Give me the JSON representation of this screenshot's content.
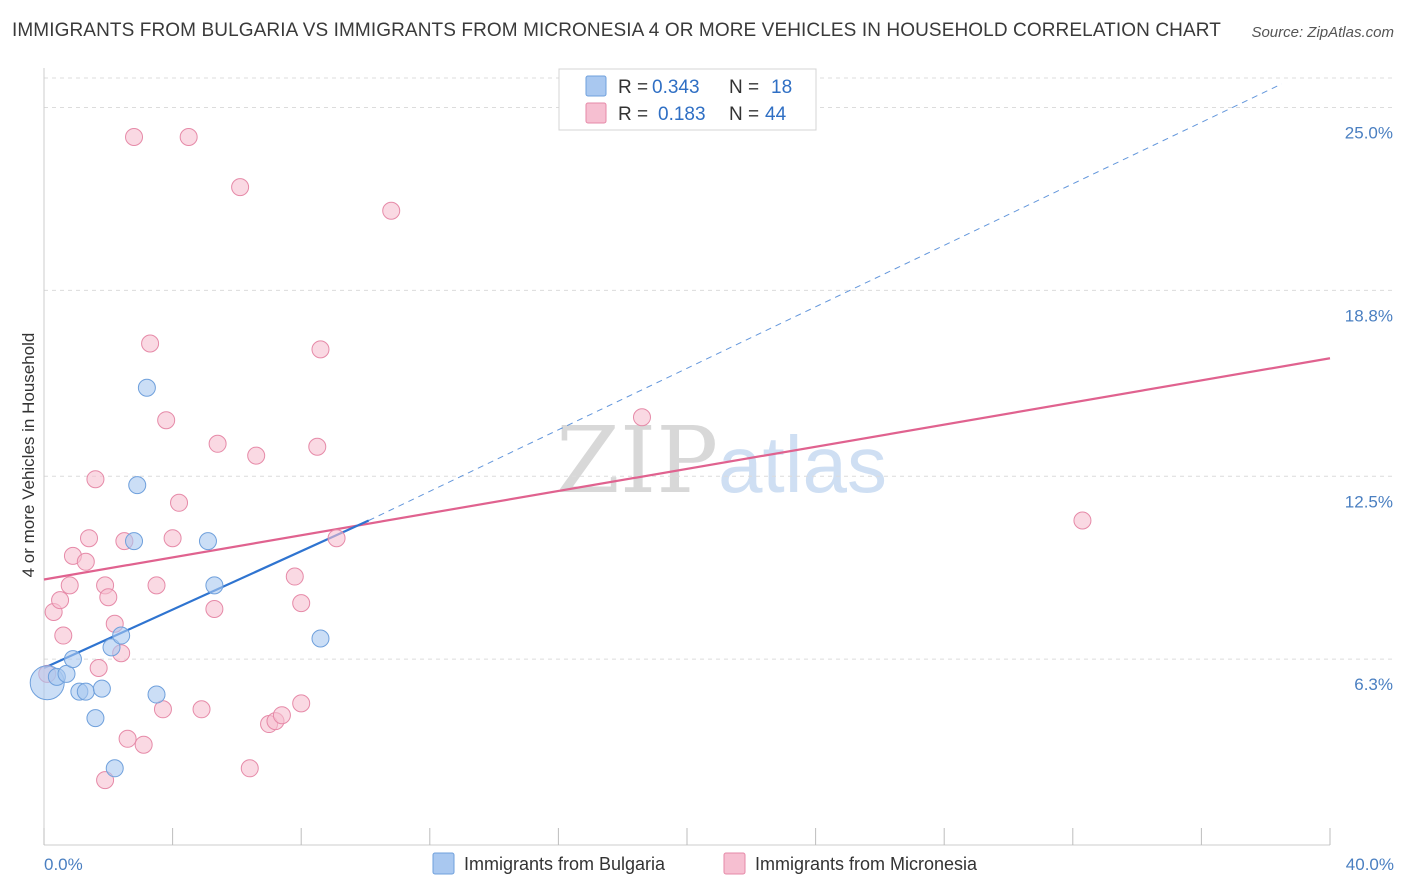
{
  "header": {
    "title": "IMMIGRANTS FROM BULGARIA VS IMMIGRANTS FROM MICRONESIA 4 OR MORE VEHICLES IN HOUSEHOLD CORRELATION CHART",
    "source": "Source: ZipAtlas.com"
  },
  "watermark": {
    "zip": "ZIP",
    "atlas": "atlas"
  },
  "colors": {
    "blue_fill": "#a9c8f0",
    "blue_stroke": "#6fa0dc",
    "blue_line": "#2f74d0",
    "pink_fill": "#f6bfd1",
    "pink_stroke": "#e68aa8",
    "pink_line": "#e0628f",
    "grid": "#dcdcdc",
    "axis_text": "#4a7fc1"
  },
  "legend_top": {
    "rows": [
      {
        "r_label": "R =",
        "r_value": "0.343",
        "n_label": "N =",
        "n_value": "18"
      },
      {
        "r_label": "R =",
        "r_value": "0.183",
        "n_label": "N =",
        "n_value": "44"
      }
    ]
  },
  "chart_data": {
    "type": "scatter",
    "title": "IMMIGRANTS FROM BULGARIA VS IMMIGRANTS FROM MICRONESIA 4 OR MORE VEHICLES IN HOUSEHOLD CORRELATION CHART",
    "xlabel": "",
    "ylabel": "4 or more Vehicles in Household",
    "xlim": [
      0,
      40
    ],
    "ylim": [
      0,
      26.0
    ],
    "x_tick_labels": [
      "0.0%",
      "40.0%"
    ],
    "y_ticks": [
      6.3,
      12.5,
      18.8,
      25.0
    ],
    "y_tick_labels": [
      "6.3%",
      "12.5%",
      "18.8%",
      "25.0%"
    ],
    "grid": true,
    "legend_position": "top-center",
    "series": [
      {
        "name": "Immigrants from Bulgaria",
        "color": "#a9c8f0",
        "r": 0.343,
        "n": 18,
        "points": [
          [
            0.1,
            5.5,
            "large"
          ],
          [
            0.4,
            5.7
          ],
          [
            0.7,
            5.8
          ],
          [
            0.9,
            6.3
          ],
          [
            1.1,
            5.2
          ],
          [
            1.3,
            5.2
          ],
          [
            1.6,
            4.3
          ],
          [
            1.8,
            5.3
          ],
          [
            2.1,
            6.7
          ],
          [
            2.4,
            7.1
          ],
          [
            2.2,
            2.6
          ],
          [
            2.8,
            10.3
          ],
          [
            2.9,
            12.2
          ],
          [
            3.2,
            15.5
          ],
          [
            3.5,
            5.1
          ],
          [
            5.1,
            10.3
          ],
          [
            5.3,
            8.8
          ],
          [
            8.6,
            7.0
          ]
        ],
        "trend": {
          "x0": 0,
          "y0": 6.0,
          "x1": 10.1,
          "y1": 11.0,
          "dashed_to_x": 38.5,
          "dashed_to_y": 25.8
        }
      },
      {
        "name": "Immigrants from Micronesia",
        "color": "#f6bfd1",
        "r": 0.183,
        "n": 44,
        "points": [
          [
            0.1,
            5.8
          ],
          [
            0.3,
            7.9
          ],
          [
            0.5,
            8.3
          ],
          [
            0.6,
            7.1
          ],
          [
            0.8,
            8.8
          ],
          [
            0.9,
            9.8
          ],
          [
            1.3,
            9.6
          ],
          [
            1.4,
            10.4
          ],
          [
            1.6,
            12.4
          ],
          [
            1.7,
            6.0
          ],
          [
            1.9,
            8.8
          ],
          [
            1.9,
            2.2
          ],
          [
            2.0,
            8.4
          ],
          [
            2.2,
            7.5
          ],
          [
            2.4,
            6.5
          ],
          [
            2.5,
            10.3
          ],
          [
            2.6,
            3.6
          ],
          [
            2.8,
            24.0
          ],
          [
            3.1,
            3.4
          ],
          [
            3.3,
            17.0
          ],
          [
            3.5,
            8.8
          ],
          [
            3.7,
            4.6
          ],
          [
            3.8,
            14.4
          ],
          [
            4.0,
            10.4
          ],
          [
            4.2,
            11.6
          ],
          [
            4.5,
            24.0
          ],
          [
            4.9,
            4.6
          ],
          [
            5.3,
            8.0
          ],
          [
            5.4,
            13.6
          ],
          [
            6.1,
            22.3
          ],
          [
            6.4,
            2.6
          ],
          [
            6.6,
            13.2
          ],
          [
            7.0,
            4.1
          ],
          [
            7.2,
            4.2
          ],
          [
            7.4,
            4.4
          ],
          [
            7.8,
            9.1
          ],
          [
            8.0,
            4.8
          ],
          [
            8.0,
            8.2
          ],
          [
            8.5,
            13.5
          ],
          [
            8.6,
            16.8
          ],
          [
            9.1,
            10.4
          ],
          [
            10.8,
            21.5
          ],
          [
            18.6,
            14.5
          ],
          [
            32.3,
            11.0
          ]
        ],
        "trend": {
          "x0": 0,
          "y0": 9.0,
          "x1": 40,
          "y1": 16.5
        }
      }
    ]
  },
  "legend_bottom": {
    "items": [
      {
        "label": "Immigrants from Bulgaria"
      },
      {
        "label": "Immigrants from Micronesia"
      }
    ]
  }
}
